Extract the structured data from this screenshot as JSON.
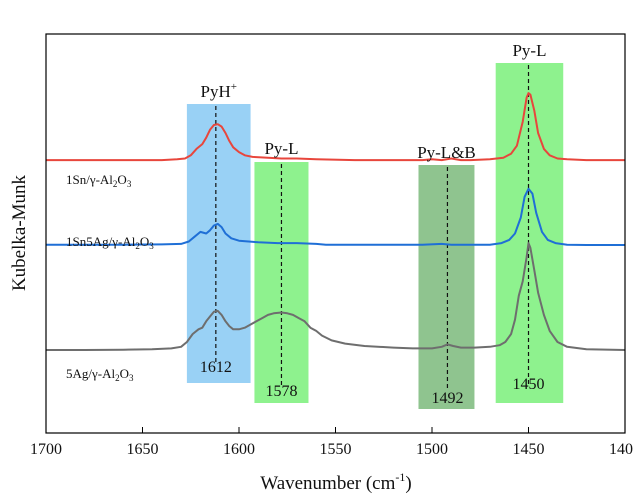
{
  "chart_data": {
    "type": "line",
    "xlabel": "Wavenumber (cm",
    "xlabel_sup": "-1",
    "xlabel_end": ")",
    "ylabel": "Kubelka-Munk",
    "xlim": [
      1700,
      1400
    ],
    "x_reversed": true,
    "x_ticks": [
      "1700",
      "1650",
      "1600",
      "1550",
      "1500",
      "1450",
      "1400"
    ],
    "y_ticks_visible": false,
    "grid": false,
    "legend": "none",
    "bands": [
      {
        "name": "band-pyh",
        "label_main": "PyH",
        "label_sup": "+",
        "x_min": 1627,
        "x_max": 1594,
        "color": "#99d1f5",
        "marker_x": 1612,
        "marker_label": "1612"
      },
      {
        "name": "band-py-l-1578",
        "label_main": "Py-L",
        "label_sup": "",
        "x_min": 1592,
        "x_max": 1564,
        "color": "#8ef28e",
        "marker_x": 1578,
        "marker_label": "1578"
      },
      {
        "name": "band-py-lb",
        "label_main": "Py-L&B",
        "label_sup": "",
        "x_min": 1507,
        "x_max": 1478,
        "color": "#8fc48f",
        "marker_x": 1492,
        "marker_label": "1492"
      },
      {
        "name": "band-py-l-1450",
        "label_main": "Py-L",
        "label_sup": "",
        "x_min": 1467,
        "x_max": 1432,
        "color": "#8ef28e",
        "marker_x": 1450,
        "marker_label": "1450"
      }
    ],
    "series": [
      {
        "name": "1Sn/γ-Al",
        "name_sub": "2",
        "name_mid": "O",
        "name_sub2": "3",
        "color": "#e8463c",
        "points": [
          [
            1700,
            0.79
          ],
          [
            1680,
            0.79
          ],
          [
            1660,
            0.79
          ],
          [
            1640,
            0.79
          ],
          [
            1632,
            0.785
          ],
          [
            1628,
            0.78
          ],
          [
            1625,
            0.76
          ],
          [
            1622,
            0.72
          ],
          [
            1619,
            0.69
          ],
          [
            1617,
            0.65
          ],
          [
            1615,
            0.6
          ],
          [
            1613,
            0.57
          ],
          [
            1611,
            0.565
          ],
          [
            1609,
            0.58
          ],
          [
            1607,
            0.62
          ],
          [
            1605,
            0.67
          ],
          [
            1603,
            0.71
          ],
          [
            1600,
            0.74
          ],
          [
            1597,
            0.76
          ],
          [
            1593,
            0.77
          ],
          [
            1585,
            0.775
          ],
          [
            1578,
            0.78
          ],
          [
            1570,
            0.78
          ],
          [
            1560,
            0.785
          ],
          [
            1540,
            0.79
          ],
          [
            1520,
            0.79
          ],
          [
            1505,
            0.79
          ],
          [
            1500,
            0.785
          ],
          [
            1495,
            0.79
          ],
          [
            1490,
            0.78
          ],
          [
            1485,
            0.79
          ],
          [
            1480,
            0.79
          ],
          [
            1470,
            0.785
          ],
          [
            1463,
            0.775
          ],
          [
            1459,
            0.75
          ],
          [
            1456,
            0.7
          ],
          [
            1453,
            0.55
          ],
          [
            1451,
            0.4
          ],
          [
            1450,
            0.37
          ],
          [
            1449,
            0.38
          ],
          [
            1447,
            0.48
          ],
          [
            1445,
            0.62
          ],
          [
            1442,
            0.72
          ],
          [
            1439,
            0.76
          ],
          [
            1435,
            0.78
          ],
          [
            1430,
            0.785
          ],
          [
            1420,
            0.79
          ],
          [
            1400,
            0.79
          ]
        ]
      },
      {
        "name": "1Sn5Ag/γ-Al",
        "name_sub": "2",
        "name_mid": "O",
        "name_sub2": "3",
        "color": "#1f6fd6",
        "points": [
          [
            1700,
            1.32
          ],
          [
            1680,
            1.32
          ],
          [
            1660,
            1.32
          ],
          [
            1640,
            1.318
          ],
          [
            1630,
            1.315
          ],
          [
            1626,
            1.3
          ],
          [
            1623,
            1.27
          ],
          [
            1620,
            1.24
          ],
          [
            1617,
            1.25
          ],
          [
            1615,
            1.23
          ],
          [
            1613,
            1.2
          ],
          [
            1611,
            1.19
          ],
          [
            1609,
            1.21
          ],
          [
            1607,
            1.25
          ],
          [
            1604,
            1.28
          ],
          [
            1600,
            1.295
          ],
          [
            1595,
            1.3
          ],
          [
            1590,
            1.305
          ],
          [
            1580,
            1.31
          ],
          [
            1570,
            1.31
          ],
          [
            1560,
            1.315
          ],
          [
            1555,
            1.32
          ],
          [
            1540,
            1.32
          ],
          [
            1520,
            1.32
          ],
          [
            1505,
            1.32
          ],
          [
            1495,
            1.315
          ],
          [
            1490,
            1.32
          ],
          [
            1480,
            1.32
          ],
          [
            1470,
            1.32
          ],
          [
            1464,
            1.31
          ],
          [
            1460,
            1.29
          ],
          [
            1457,
            1.25
          ],
          [
            1454,
            1.15
          ],
          [
            1452,
            1.02
          ],
          [
            1450,
            0.97
          ],
          [
            1448,
            1.0
          ],
          [
            1446,
            1.12
          ],
          [
            1443,
            1.24
          ],
          [
            1440,
            1.29
          ],
          [
            1436,
            1.31
          ],
          [
            1430,
            1.32
          ],
          [
            1420,
            1.322
          ],
          [
            1400,
            1.322
          ]
        ]
      },
      {
        "name": "5Ag/γ-Al",
        "name_sub": "2",
        "name_mid": "O",
        "name_sub2": "3",
        "color": "#6e6e6e",
        "points": [
          [
            1700,
            1.98
          ],
          [
            1680,
            1.98
          ],
          [
            1660,
            1.978
          ],
          [
            1645,
            1.975
          ],
          [
            1635,
            1.97
          ],
          [
            1630,
            1.96
          ],
          [
            1627,
            1.93
          ],
          [
            1624,
            1.88
          ],
          [
            1621,
            1.85
          ],
          [
            1619,
            1.84
          ],
          [
            1617,
            1.8
          ],
          [
            1615,
            1.77
          ],
          [
            1613,
            1.74
          ],
          [
            1611,
            1.735
          ],
          [
            1609,
            1.76
          ],
          [
            1607,
            1.8
          ],
          [
            1605,
            1.83
          ],
          [
            1603,
            1.85
          ],
          [
            1600,
            1.85
          ],
          [
            1597,
            1.84
          ],
          [
            1594,
            1.82
          ],
          [
            1591,
            1.8
          ],
          [
            1588,
            1.78
          ],
          [
            1585,
            1.76
          ],
          [
            1582,
            1.75
          ],
          [
            1578,
            1.745
          ],
          [
            1575,
            1.75
          ],
          [
            1572,
            1.76
          ],
          [
            1569,
            1.78
          ],
          [
            1566,
            1.8
          ],
          [
            1563,
            1.84
          ],
          [
            1560,
            1.86
          ],
          [
            1557,
            1.89
          ],
          [
            1552,
            1.92
          ],
          [
            1545,
            1.94
          ],
          [
            1535,
            1.955
          ],
          [
            1520,
            1.965
          ],
          [
            1510,
            1.97
          ],
          [
            1500,
            1.97
          ],
          [
            1495,
            1.96
          ],
          [
            1492,
            1.945
          ],
          [
            1489,
            1.955
          ],
          [
            1485,
            1.965
          ],
          [
            1478,
            1.965
          ],
          [
            1470,
            1.96
          ],
          [
            1465,
            1.95
          ],
          [
            1462,
            1.93
          ],
          [
            1459,
            1.88
          ],
          [
            1457,
            1.79
          ],
          [
            1455,
            1.64
          ],
          [
            1453,
            1.55
          ],
          [
            1451,
            1.4
          ],
          [
            1450,
            1.31
          ],
          [
            1449,
            1.34
          ],
          [
            1447,
            1.48
          ],
          [
            1445,
            1.62
          ],
          [
            1442,
            1.76
          ],
          [
            1439,
            1.86
          ],
          [
            1435,
            1.93
          ],
          [
            1430,
            1.96
          ],
          [
            1420,
            1.975
          ],
          [
            1400,
            1.98
          ]
        ]
      }
    ]
  }
}
